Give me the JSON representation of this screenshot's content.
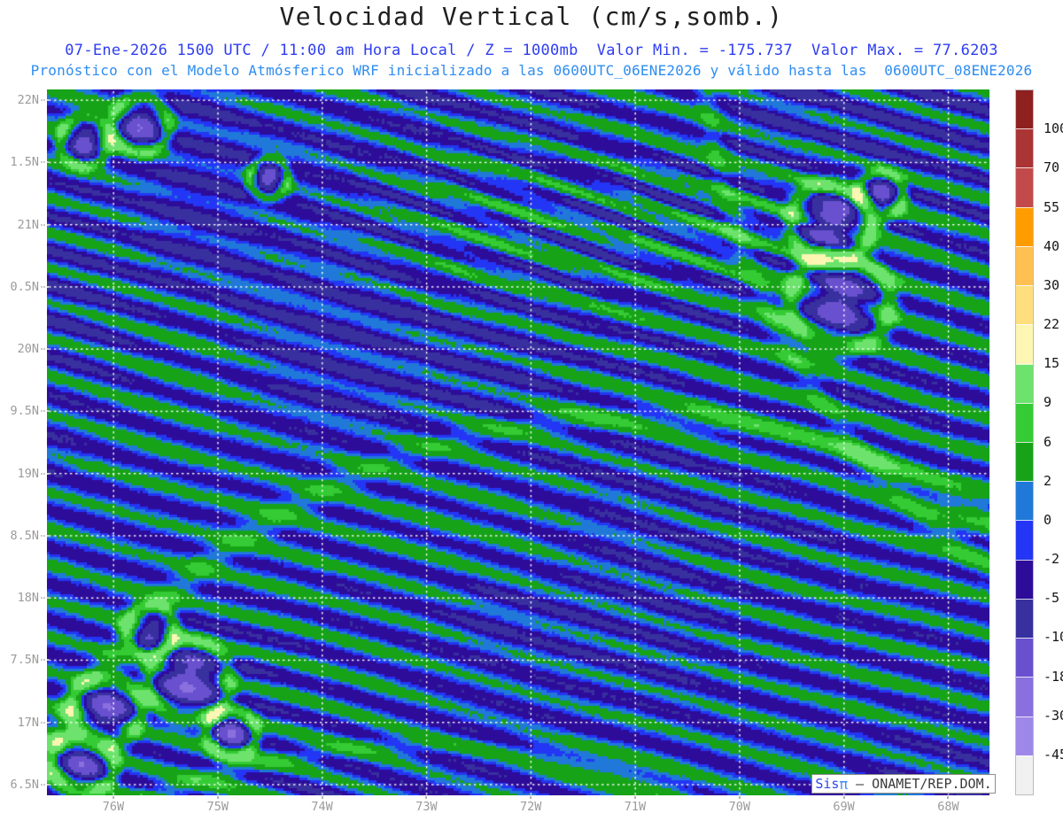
{
  "header": {
    "title": "Velocidad Vertical (cm/s,somb.)",
    "subtitle1": "07-Ene-2026 1500 UTC / 11:00 am Hora Local / Z = 1000mb  Valor Min. = -175.737  Valor Max. = 77.6203",
    "subtitle2": "Pronóstico con el Modelo Atmósferico WRF inicializado a las 0600UTC_06ENE2026 y válido hasta las  0600UTC_08ENE2026"
  },
  "axes": {
    "y": [
      "22N",
      "1.5N",
      "21N",
      "0.5N",
      "20N",
      "9.5N",
      "19N",
      "8.5N",
      "18N",
      "7.5N",
      "17N",
      "6.5N"
    ],
    "x": [
      "76W",
      "75W",
      "74W",
      "73W",
      "72W",
      "71W",
      "70W",
      "69W",
      "68W"
    ]
  },
  "colorbar": {
    "labels": [
      "100",
      "70",
      "55",
      "40",
      "30",
      "22",
      "15",
      "9",
      "6",
      "2",
      "0",
      "-2",
      "-5",
      "-10",
      "-18",
      "-30",
      "-45"
    ],
    "colors": [
      "#8e2020",
      "#ab3434",
      "#c24a4a",
      "#ff9c00",
      "#fdc051",
      "#fede7d",
      "#fcf6b2",
      "#6de36d",
      "#35cb35",
      "#17a317",
      "#2079d8",
      "#2336f5",
      "#2e0c9a",
      "#37309e",
      "#6950cf",
      "#8a70de",
      "#9d88e9",
      "#f0f0f0"
    ]
  },
  "field_colors": {
    "ocean_up": "#2079d8",
    "ocean_background": "#2336f5",
    "ocean_down": "#2e0c9a",
    "grid_dots": "#ffffff",
    "coastline": "#0a0a0a",
    "admin_boundary": "#9f9f9f"
  },
  "brand": {
    "sis": "Sis",
    "pi": "π",
    "org": "– ONAMET/REP.DOM."
  }
}
